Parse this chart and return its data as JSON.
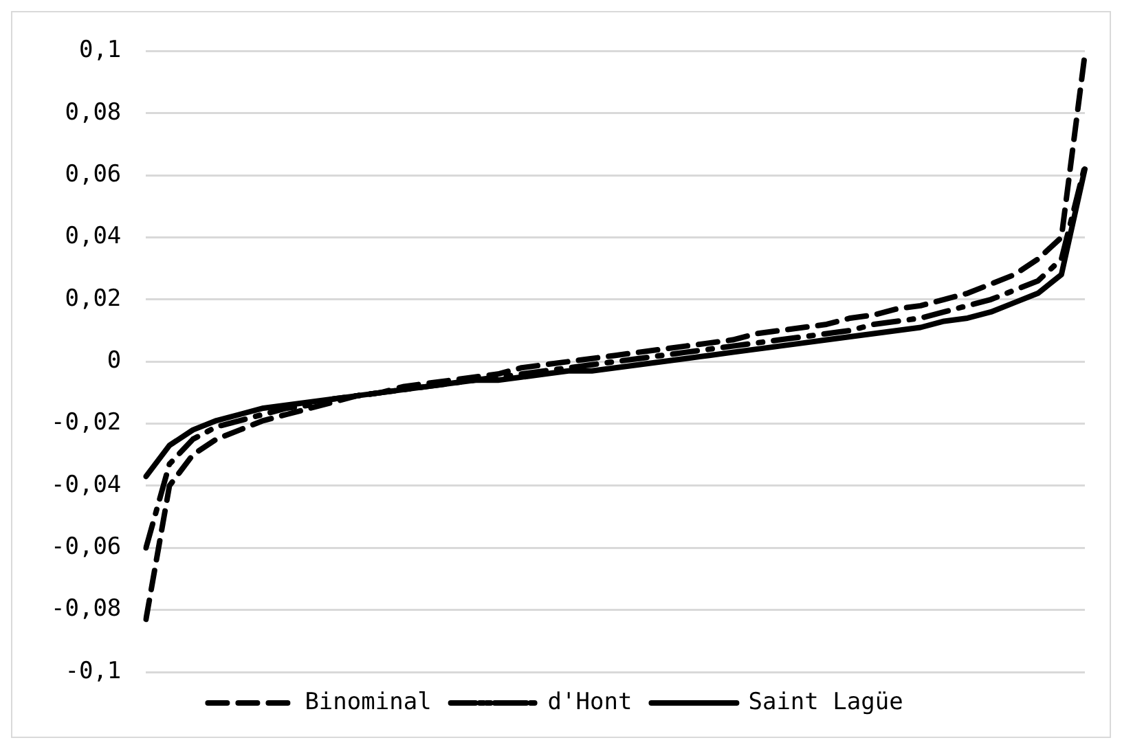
{
  "chart_data": {
    "type": "line",
    "categories": [
      null,
      null,
      null,
      null,
      null,
      null,
      null,
      null,
      null,
      null,
      null,
      null,
      null,
      null,
      null,
      null,
      null,
      null,
      null,
      null,
      null,
      null,
      null,
      null,
      null,
      null,
      null,
      null,
      null,
      null,
      null,
      null,
      null,
      null,
      null,
      null,
      null,
      null,
      null,
      null,
      null
    ],
    "series": [
      {
        "name": "Binominal",
        "color": "#000000",
        "line_style": "dashed",
        "values": [
          -0.083,
          -0.04,
          -0.03,
          -0.025,
          -0.022,
          -0.019,
          -0.017,
          -0.015,
          -0.013,
          -0.011,
          -0.01,
          -0.008,
          -0.007,
          -0.006,
          -0.005,
          -0.004,
          -0.002,
          -0.001,
          0,
          0.001,
          0.002,
          0.003,
          0.004,
          0.005,
          0.006,
          0.007,
          0.009,
          0.01,
          0.011,
          0.012,
          0.014,
          0.015,
          0.017,
          0.018,
          0.02,
          0.022,
          0.025,
          0.028,
          0.033,
          0.04,
          0.099
        ]
      },
      {
        "name": "d'Hont",
        "color": "#000000",
        "line_style": "dashdot",
        "values": [
          -0.06,
          -0.033,
          -0.025,
          -0.021,
          -0.019,
          -0.017,
          -0.015,
          -0.014,
          -0.012,
          -0.011,
          -0.01,
          -0.009,
          -0.008,
          -0.007,
          -0.006,
          -0.005,
          -0.004,
          -0.003,
          -0.002,
          -0.001,
          0,
          0.001,
          0.002,
          0.003,
          0.004,
          0.005,
          0.006,
          0.007,
          0.008,
          0.009,
          0.01,
          0.012,
          0.013,
          0.014,
          0.016,
          0.018,
          0.02,
          0.023,
          0.026,
          0.033,
          0.063
        ]
      },
      {
        "name": "Saint Lagüe",
        "color": "#000000",
        "line_style": "solid",
        "values": [
          -0.037,
          -0.027,
          -0.022,
          -0.019,
          -0.017,
          -0.015,
          -0.014,
          -0.013,
          -0.012,
          -0.011,
          -0.01,
          -0.009,
          -0.008,
          -0.007,
          -0.006,
          -0.006,
          -0.005,
          -0.004,
          -0.003,
          -0.003,
          -0.002,
          -0.001,
          0,
          0.001,
          0.002,
          0.003,
          0.004,
          0.005,
          0.006,
          0.007,
          0.008,
          0.009,
          0.01,
          0.011,
          0.013,
          0.014,
          0.016,
          0.019,
          0.022,
          0.028,
          0.062
        ]
      }
    ],
    "ylim": [
      -0.1,
      0.1
    ],
    "yticks": [
      {
        "value": -0.1,
        "label": "-0,1"
      },
      {
        "value": -0.08,
        "label": "-0,08"
      },
      {
        "value": -0.06,
        "label": "-0,06"
      },
      {
        "value": -0.04,
        "label": "-0,04"
      },
      {
        "value": -0.02,
        "label": "-0,02"
      },
      0,
      {
        "value": 0.02,
        "label": "0,02"
      },
      {
        "value": 0.04,
        "label": "0,04"
      },
      {
        "value": 0.06,
        "label": "0,06"
      },
      {
        "value": 0.08,
        "label": "0,08"
      },
      {
        "value": 0.1,
        "label": "0,1"
      }
    ],
    "grid": "y",
    "legend": "bottom",
    "tick_labels": "y",
    "marker": "none"
  }
}
